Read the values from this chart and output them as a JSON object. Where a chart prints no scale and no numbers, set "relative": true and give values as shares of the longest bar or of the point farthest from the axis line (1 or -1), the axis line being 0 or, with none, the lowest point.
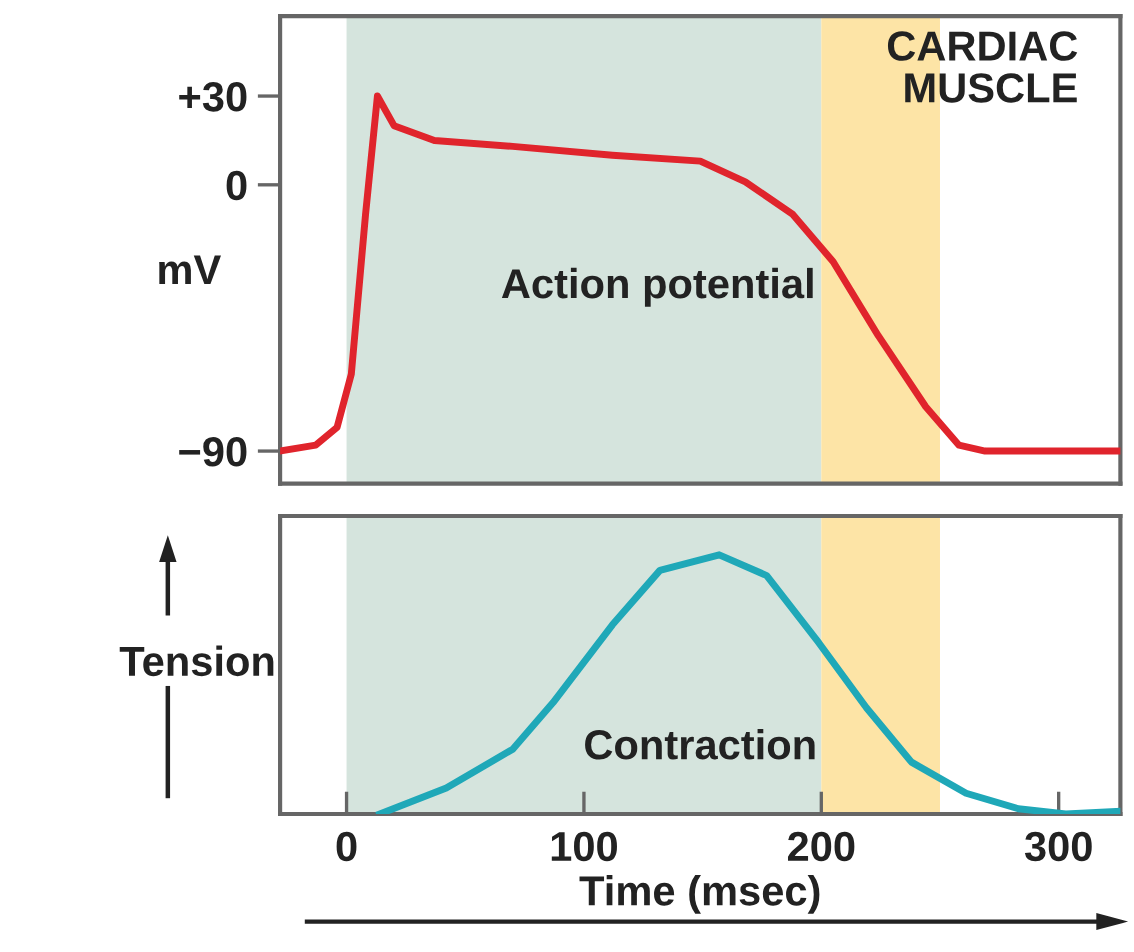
{
  "chart_data": [
    {
      "type": "line",
      "x": [
        -28,
        -13,
        -4,
        2,
        8,
        13,
        20,
        37,
        70,
        112,
        149,
        168,
        188,
        205,
        224,
        244,
        258,
        269,
        325
      ],
      "series": [
        {
          "color": "#e0242c",
          "values": [
            -90,
            -88,
            -82,
            -64,
            -10,
            30,
            20,
            15,
            13,
            10,
            8,
            1,
            -10,
            -26,
            -51,
            -75,
            -88,
            -90,
            -90
          ]
        }
      ],
      "ylabel": "mV",
      "xlim": [
        -28,
        326
      ],
      "ylim": [
        -101,
        57
      ],
      "yticks": [
        {
          "value": 30,
          "label": "+30"
        },
        0,
        {
          "value": -90,
          "label": "−90"
        }
      ],
      "tick_labels": "y",
      "grid": false,
      "legend": false,
      "marker": "none",
      "line_style": "solid",
      "bands": [
        {
          "axis": "x",
          "from": 0,
          "to": 200,
          "color": "#d5e4dd"
        },
        {
          "axis": "x",
          "from": 200,
          "to": 250,
          "color": "#fde4a6"
        }
      ],
      "annotations": [
        "CARDIAC\nMUSCLE",
        "Action potential"
      ]
    },
    {
      "type": "line",
      "relative": true,
      "x": [
        14,
        42,
        70,
        87,
        112,
        132,
        157,
        177,
        199,
        219,
        238,
        261,
        283,
        303,
        325
      ],
      "series": [
        {
          "color": "#1fa8b8",
          "values": [
            0,
            0.1,
            0.25,
            0.43,
            0.73,
            0.94,
            1,
            0.92,
            0.66,
            0.41,
            0.2,
            0.08,
            0.02,
            0,
            0.01
          ]
        }
      ],
      "ylabel": "Tension",
      "xlabel": "Time (msec)",
      "xlim": [
        -28,
        326
      ],
      "xticks": [
        0,
        100,
        200,
        300
      ],
      "tick_labels": "x",
      "grid": false,
      "legend": false,
      "marker": "none",
      "line_style": "solid",
      "bands": [
        {
          "axis": "x",
          "from": 0,
          "to": 200,
          "color": "#d5e4dd"
        },
        {
          "axis": "x",
          "from": 200,
          "to": 250,
          "color": "#fde4a6"
        }
      ],
      "annotations": [
        "Contraction"
      ]
    }
  ]
}
